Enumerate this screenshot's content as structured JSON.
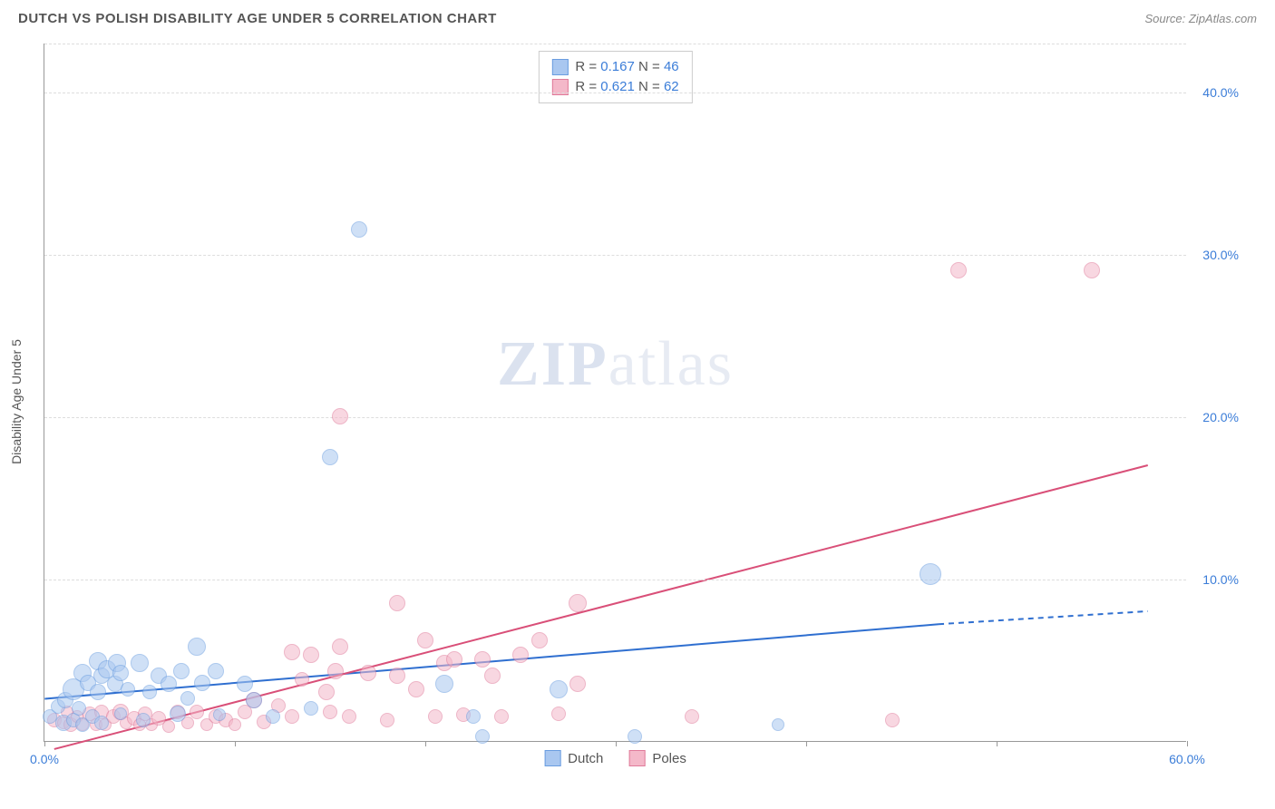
{
  "header": {
    "title": "DUTCH VS POLISH DISABILITY AGE UNDER 5 CORRELATION CHART",
    "source": "Source: ZipAtlas.com"
  },
  "chart": {
    "type": "scatter",
    "watermark_zip": "ZIP",
    "watermark_atlas": "atlas",
    "y_axis_label": "Disability Age Under 5",
    "xlim": [
      0,
      60
    ],
    "ylim": [
      0,
      43
    ],
    "x_ticks": [
      0,
      10,
      20,
      30,
      40,
      50,
      60
    ],
    "x_tick_labels": {
      "0": "0.0%",
      "60": "60.0%"
    },
    "y_gridlines": [
      10,
      20,
      30,
      40,
      43
    ],
    "y_tick_labels": {
      "10": "10.0%",
      "20": "20.0%",
      "30": "30.0%",
      "40": "40.0%"
    },
    "background_color": "#ffffff",
    "grid_color": "#dddddd",
    "axis_color": "#999999",
    "tick_label_color": "#3b7dd8",
    "series": {
      "dutch": {
        "label": "Dutch",
        "fill": "#a9c7f0",
        "stroke": "#6a9de0",
        "opacity": 0.55,
        "r_label": "R = ",
        "r_value": "0.167",
        "n_label": "   N = ",
        "n_value": "46",
        "trend": {
          "x1": 0,
          "y1": 2.6,
          "x2": 47,
          "y2": 7.2,
          "x2_dash": 58,
          "y2_dash": 8.0,
          "color": "#2f6fd0",
          "width": 2
        },
        "points": [
          [
            0.3,
            1.5,
            8
          ],
          [
            0.7,
            2.1,
            8
          ],
          [
            1.0,
            1.1,
            9
          ],
          [
            1.1,
            2.5,
            9
          ],
          [
            1.5,
            1.3,
            8
          ],
          [
            1.5,
            3.2,
            12
          ],
          [
            1.8,
            2.0,
            8
          ],
          [
            2.0,
            1.0,
            8
          ],
          [
            2.0,
            4.2,
            10
          ],
          [
            2.3,
            3.6,
            9
          ],
          [
            2.5,
            1.5,
            8
          ],
          [
            2.8,
            4.9,
            10
          ],
          [
            2.8,
            3.0,
            9
          ],
          [
            3.0,
            1.1,
            8
          ],
          [
            3.0,
            4.0,
            9
          ],
          [
            3.3,
            4.4,
            10
          ],
          [
            3.7,
            3.5,
            9
          ],
          [
            3.8,
            4.8,
            10
          ],
          [
            4.0,
            1.7,
            7
          ],
          [
            4.0,
            4.2,
            9
          ],
          [
            4.4,
            3.2,
            8
          ],
          [
            5.0,
            4.8,
            10
          ],
          [
            5.2,
            1.3,
            8
          ],
          [
            5.5,
            3.0,
            8
          ],
          [
            6.0,
            4.0,
            9
          ],
          [
            6.5,
            3.5,
            9
          ],
          [
            7.0,
            1.7,
            9
          ],
          [
            7.2,
            4.3,
            9
          ],
          [
            7.5,
            2.6,
            8
          ],
          [
            8.0,
            5.8,
            10
          ],
          [
            8.3,
            3.6,
            9
          ],
          [
            9.0,
            4.3,
            9
          ],
          [
            9.2,
            1.6,
            7
          ],
          [
            10.5,
            3.5,
            9
          ],
          [
            11.0,
            2.5,
            9
          ],
          [
            12.0,
            1.5,
            8
          ],
          [
            14.0,
            2.0,
            8
          ],
          [
            15.0,
            17.5,
            9
          ],
          [
            16.5,
            31.5,
            9
          ],
          [
            21.0,
            3.5,
            10
          ],
          [
            22.5,
            1.5,
            8
          ],
          [
            23.0,
            0.3,
            8
          ],
          [
            27.0,
            3.2,
            10
          ],
          [
            31.0,
            0.3,
            8
          ],
          [
            38.5,
            1.0,
            7
          ],
          [
            46.5,
            10.3,
            12
          ]
        ]
      },
      "poles": {
        "label": "Poles",
        "fill": "#f4b8c9",
        "stroke": "#e07a9a",
        "opacity": 0.55,
        "r_label": "R = ",
        "r_value": "0.621",
        "n_label": "   N = ",
        "n_value": "62",
        "trend": {
          "x1": 0.5,
          "y1": -0.5,
          "x2": 58,
          "y2": 17.0,
          "color": "#d94f78",
          "width": 2
        },
        "points": [
          [
            0.5,
            1.3,
            8
          ],
          [
            1.0,
            1.1,
            7
          ],
          [
            1.2,
            1.8,
            7
          ],
          [
            1.4,
            1.0,
            8
          ],
          [
            1.7,
            1.5,
            7
          ],
          [
            2.0,
            1.0,
            7
          ],
          [
            2.4,
            1.7,
            8
          ],
          [
            2.7,
            1.0,
            7
          ],
          [
            3.0,
            1.8,
            8
          ],
          [
            3.2,
            1.0,
            7
          ],
          [
            3.6,
            1.5,
            8
          ],
          [
            4.0,
            1.8,
            9
          ],
          [
            4.3,
            1.1,
            7
          ],
          [
            4.7,
            1.4,
            8
          ],
          [
            5.0,
            1.0,
            7
          ],
          [
            5.3,
            1.7,
            8
          ],
          [
            5.6,
            1.0,
            7
          ],
          [
            6.0,
            1.4,
            8
          ],
          [
            6.5,
            0.9,
            7
          ],
          [
            7.0,
            1.8,
            8
          ],
          [
            7.5,
            1.1,
            7
          ],
          [
            8.0,
            1.8,
            8
          ],
          [
            8.5,
            1.0,
            7
          ],
          [
            9.0,
            1.5,
            8
          ],
          [
            9.5,
            1.3,
            8
          ],
          [
            10.0,
            1.0,
            7
          ],
          [
            10.5,
            1.8,
            8
          ],
          [
            11.0,
            2.5,
            9
          ],
          [
            11.5,
            1.2,
            8
          ],
          [
            12.3,
            2.2,
            8
          ],
          [
            13.0,
            5.5,
            9
          ],
          [
            13.0,
            1.5,
            8
          ],
          [
            13.5,
            3.8,
            8
          ],
          [
            14.0,
            5.3,
            9
          ],
          [
            14.8,
            3.0,
            9
          ],
          [
            15.0,
            1.8,
            8
          ],
          [
            15.3,
            4.3,
            9
          ],
          [
            15.5,
            5.8,
            9
          ],
          [
            15.5,
            20.0,
            9
          ],
          [
            16.0,
            1.5,
            8
          ],
          [
            17.0,
            4.2,
            9
          ],
          [
            18.0,
            1.3,
            8
          ],
          [
            18.5,
            4.0,
            9
          ],
          [
            18.5,
            8.5,
            9
          ],
          [
            19.5,
            3.2,
            9
          ],
          [
            20.0,
            6.2,
            9
          ],
          [
            20.5,
            1.5,
            8
          ],
          [
            21.0,
            4.8,
            9
          ],
          [
            21.5,
            5.0,
            9
          ],
          [
            22.0,
            1.6,
            8
          ],
          [
            23.0,
            5.0,
            9
          ],
          [
            23.5,
            4.0,
            9
          ],
          [
            24.0,
            1.5,
            8
          ],
          [
            25.0,
            5.3,
            9
          ],
          [
            26.0,
            6.2,
            9
          ],
          [
            27.0,
            1.7,
            8
          ],
          [
            28.0,
            3.5,
            9
          ],
          [
            28.0,
            8.5,
            10
          ],
          [
            34.0,
            1.5,
            8
          ],
          [
            44.5,
            1.3,
            8
          ],
          [
            48.0,
            29.0,
            9
          ],
          [
            55.0,
            29.0,
            9
          ]
        ]
      }
    }
  }
}
